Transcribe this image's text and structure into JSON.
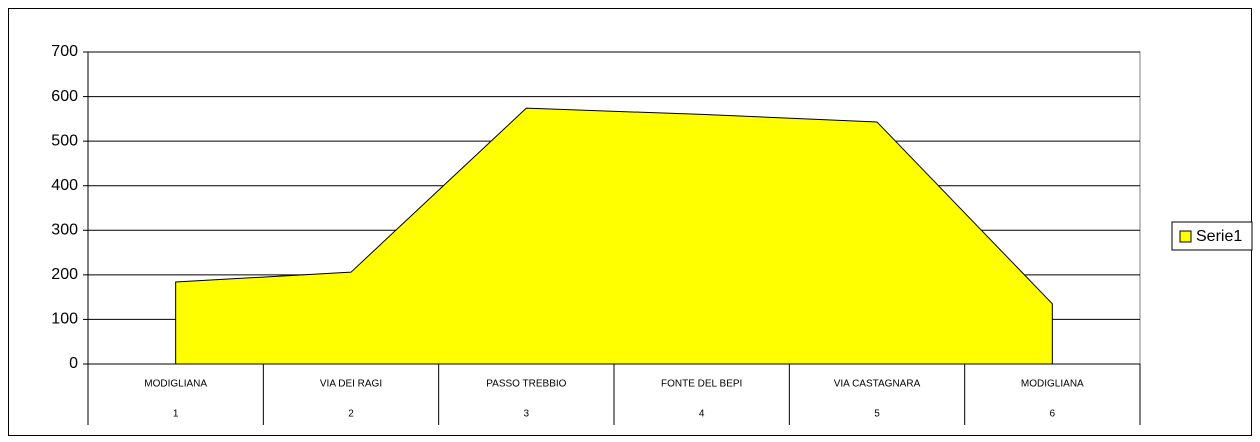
{
  "chart_data": {
    "type": "area",
    "categories": [
      "MODIGLIANA",
      "VIA DEI RAGI",
      "PASSO TREBBIO",
      "FONTE DEL BEPI",
      "VIA CASTAGNARA",
      "MODIGLIANA"
    ],
    "subcategories": [
      "1",
      "2",
      "3",
      "4",
      "5",
      "6"
    ],
    "series": [
      {
        "name": "Serie1",
        "color": "#ffff00",
        "values": [
          184,
          206,
          574,
          560,
          543,
          135
        ]
      }
    ],
    "ylim": [
      0,
      700
    ],
    "yticks": [
      0,
      100,
      200,
      300,
      400,
      500,
      600,
      700
    ],
    "grid": true,
    "legend": "right"
  }
}
